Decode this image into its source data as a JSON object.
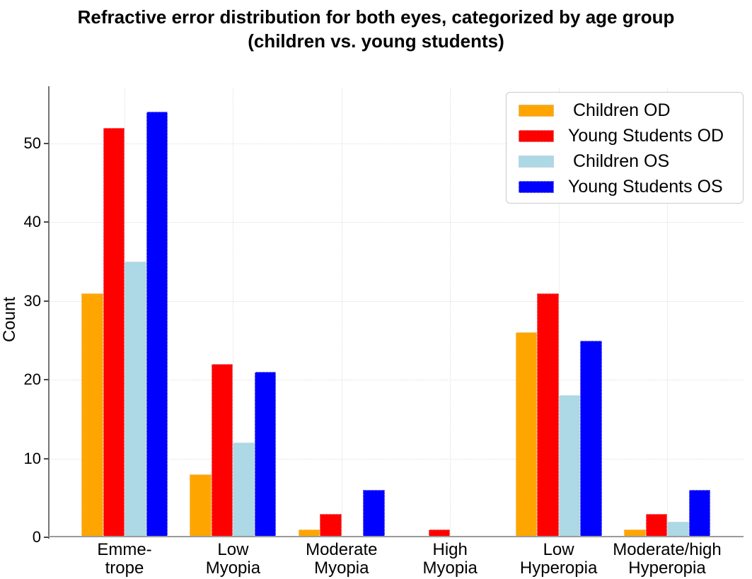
{
  "title": {
    "line1": "Refractive error distribution for both eyes, categorized by age group",
    "line2": "(children vs. young students)"
  },
  "axes": {
    "ylabel": "Count"
  },
  "legend": {
    "position": "upper right",
    "entries": [
      {
        "label": " Children OD",
        "color": "#FFA500"
      },
      {
        "label": "Young Students OD",
        "color": "#FF0000"
      },
      {
        "label": " Children OS",
        "color": "#ADD8E6"
      },
      {
        "label": "Young Students OS",
        "color": "#0000FF"
      }
    ]
  },
  "chart_data": {
    "type": "bar",
    "title": "Refractive error distribution for both eyes, categorized by age group (children vs. young students)",
    "xlabel": "",
    "ylabel": "Count",
    "ylim": [
      0,
      57
    ],
    "yticks": [
      0,
      10,
      20,
      30,
      40,
      50
    ],
    "grid": true,
    "legend_position": "upper right",
    "categories": [
      "Emme-\ntrope",
      "Low\nMyopia",
      "Moderate\nMyopia",
      "High\nMyopia",
      "Low\nHyperopia",
      "Moderate/high\nHyperopia"
    ],
    "series": [
      {
        "name": "Children OD",
        "color": "#FFA500",
        "values": [
          31,
          8,
          1,
          0,
          26,
          1
        ]
      },
      {
        "name": "Young Students OD",
        "color": "#FF0000",
        "values": [
          52,
          22,
          3,
          1,
          31,
          3
        ]
      },
      {
        "name": "Children OS",
        "color": "#ADD8E6",
        "values": [
          35,
          12,
          0,
          0,
          18,
          2
        ]
      },
      {
        "name": "Young Students OS",
        "color": "#0000FF",
        "values": [
          54,
          21,
          6,
          0,
          25,
          6
        ]
      }
    ]
  }
}
